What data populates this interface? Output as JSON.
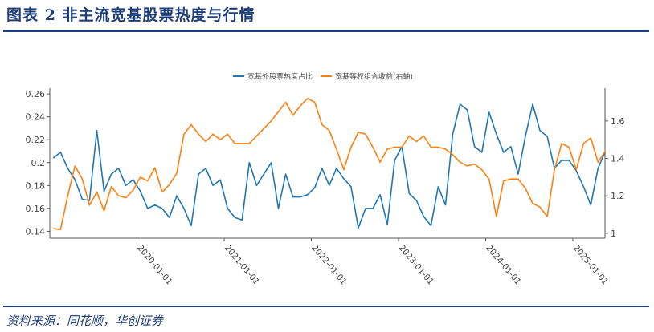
{
  "header": {
    "title": "图表 2   非主流宽基股票热度与行情"
  },
  "footer": {
    "source": "资料来源：同花顺，华创证券"
  },
  "chart_data": {
    "type": "line",
    "title": "",
    "legend_position": "top-center",
    "grid": false,
    "x_ticks": [
      "2020-01-01",
      "2021-01-01",
      "2022-01-01",
      "2023-01-01",
      "2024-01-01",
      "2025-01-01"
    ],
    "xlim": [
      "2019-01",
      "2025-05"
    ],
    "y_left": {
      "ticks": [
        0.14,
        0.16,
        0.18,
        0.2,
        0.22,
        0.24,
        0.26
      ],
      "tick_labels": [
        "0.14",
        "0.16",
        "0.18",
        "0.2",
        "0.22",
        "0.24",
        "0.26"
      ],
      "range": [
        0.134,
        0.265
      ]
    },
    "y_right": {
      "ticks": [
        1,
        1.2,
        1.4,
        1.6
      ],
      "tick_labels": [
        "1",
        "1.2",
        "1.4",
        "1.6"
      ],
      "range": [
        0.974,
        1.775
      ]
    },
    "x": [
      "2019-01",
      "2019-02",
      "2019-03",
      "2019-04",
      "2019-05",
      "2019-06",
      "2019-07",
      "2019-08",
      "2019-09",
      "2019-10",
      "2019-11",
      "2019-12",
      "2020-01",
      "2020-02",
      "2020-03",
      "2020-04",
      "2020-05",
      "2020-06",
      "2020-07",
      "2020-08",
      "2020-09",
      "2020-10",
      "2020-11",
      "2020-12",
      "2021-01",
      "2021-02",
      "2021-03",
      "2021-04",
      "2021-05",
      "2021-06",
      "2021-07",
      "2021-08",
      "2021-09",
      "2021-10",
      "2021-11",
      "2021-12",
      "2022-01",
      "2022-02",
      "2022-03",
      "2022-04",
      "2022-05",
      "2022-06",
      "2022-07",
      "2022-08",
      "2022-09",
      "2022-10",
      "2022-11",
      "2022-12",
      "2023-01",
      "2023-02",
      "2023-03",
      "2023-04",
      "2023-05",
      "2023-06",
      "2023-07",
      "2023-08",
      "2023-09",
      "2023-10",
      "2023-11",
      "2023-12",
      "2024-01",
      "2024-02",
      "2024-03",
      "2024-04",
      "2024-05",
      "2024-06",
      "2024-07",
      "2024-08",
      "2024-09",
      "2024-10",
      "2024-11",
      "2024-12",
      "2025-01",
      "2025-02",
      "2025-03",
      "2025-04",
      "2025-05"
    ],
    "series": [
      {
        "name": "宽基外股票热度占比",
        "axis": "left",
        "color": "#1f77b4",
        "values": [
          0.204,
          0.209,
          0.195,
          0.185,
          0.168,
          0.167,
          0.228,
          0.175,
          0.19,
          0.195,
          0.18,
          0.185,
          0.175,
          0.16,
          0.163,
          0.16,
          0.152,
          0.171,
          0.16,
          0.145,
          0.19,
          0.195,
          0.18,
          0.185,
          0.16,
          0.152,
          0.15,
          0.2,
          0.18,
          0.19,
          0.2,
          0.16,
          0.19,
          0.17,
          0.17,
          0.172,
          0.178,
          0.195,
          0.18,
          0.195,
          0.186,
          0.179,
          0.143,
          0.16,
          0.16,
          0.172,
          0.146,
          0.202,
          0.214,
          0.173,
          0.167,
          0.153,
          0.145,
          0.179,
          0.163,
          0.225,
          0.251,
          0.246,
          0.214,
          0.209,
          0.244,
          0.225,
          0.209,
          0.214,
          0.19,
          0.223,
          0.251,
          0.228,
          0.223,
          0.195,
          0.202,
          0.202,
          0.193,
          0.179,
          0.163,
          0.195,
          0.21
        ]
      },
      {
        "name": "宽基等权组合收益(右轴)",
        "axis": "right",
        "color": "#ff7f0e",
        "values": [
          1.026,
          1.02,
          1.2,
          1.36,
          1.29,
          1.15,
          1.22,
          1.12,
          1.25,
          1.2,
          1.19,
          1.23,
          1.3,
          1.28,
          1.35,
          1.22,
          1.26,
          1.32,
          1.53,
          1.58,
          1.53,
          1.49,
          1.53,
          1.5,
          1.53,
          1.48,
          1.48,
          1.48,
          1.52,
          1.56,
          1.6,
          1.65,
          1.7,
          1.63,
          1.68,
          1.72,
          1.7,
          1.58,
          1.55,
          1.45,
          1.34,
          1.46,
          1.54,
          1.53,
          1.46,
          1.38,
          1.45,
          1.46,
          1.46,
          1.52,
          1.49,
          1.52,
          1.46,
          1.46,
          1.45,
          1.42,
          1.38,
          1.36,
          1.37,
          1.34,
          1.29,
          1.09,
          1.28,
          1.29,
          1.29,
          1.24,
          1.16,
          1.14,
          1.09,
          1.34,
          1.48,
          1.46,
          1.34,
          1.48,
          1.51,
          1.38,
          1.44
        ]
      }
    ]
  }
}
